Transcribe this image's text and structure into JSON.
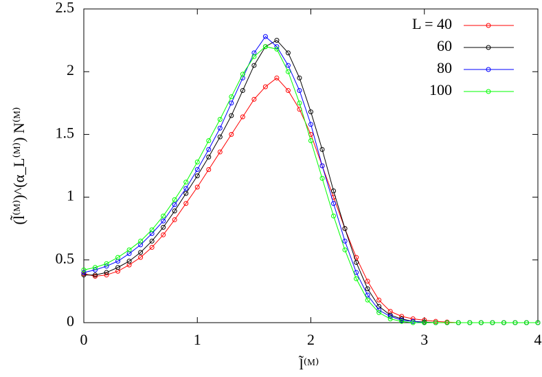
{
  "chart_data": {
    "type": "line",
    "xlabel": "l̃⁽ᴹ⁾",
    "ylabel": "(l̃⁽ᴹ⁾)^(α_L⁽ᴹ⁾) N⁽ᴹ⁾",
    "x": [
      0,
      0.1,
      0.2,
      0.3,
      0.4,
      0.5,
      0.6,
      0.7,
      0.8,
      0.9,
      1,
      1.1,
      1.2,
      1.3,
      1.4,
      1.5,
      1.6,
      1.7,
      1.8,
      1.9,
      2,
      2.1,
      2.2,
      2.3,
      2.4,
      2.5,
      2.6,
      2.7,
      2.8,
      2.9,
      3,
      3.1,
      3.2,
      3.3,
      3.4,
      3.5,
      3.6,
      3.7,
      3.8,
      3.9,
      4
    ],
    "series": [
      {
        "name": "L = 40",
        "color": "#ff0000",
        "values": [
          0.39,
          0.37,
          0.38,
          0.41,
          0.46,
          0.52,
          0.6,
          0.7,
          0.82,
          0.95,
          1.08,
          1.22,
          1.36,
          1.5,
          1.64,
          1.78,
          1.88,
          1.95,
          1.85,
          1.7,
          1.5,
          1.25,
          1.0,
          0.75,
          0.52,
          0.33,
          0.18,
          0.09,
          0.05,
          0.03,
          0.02,
          0.01,
          0.005,
          0,
          0,
          0,
          0,
          0,
          0,
          0,
          0
        ]
      },
      {
        "name": "60",
        "color": "#000000",
        "values": [
          0.38,
          0.38,
          0.4,
          0.44,
          0.49,
          0.56,
          0.65,
          0.76,
          0.89,
          1.03,
          1.17,
          1.32,
          1.48,
          1.65,
          1.85,
          2.05,
          2.2,
          2.25,
          2.15,
          1.95,
          1.68,
          1.38,
          1.05,
          0.75,
          0.48,
          0.27,
          0.13,
          0.06,
          0.03,
          0.01,
          0.005,
          0,
          0,
          0,
          0,
          0,
          0,
          0,
          0,
          0,
          0
        ]
      },
      {
        "name": "80",
        "color": "#0000ff",
        "values": [
          0.4,
          0.42,
          0.45,
          0.49,
          0.55,
          0.62,
          0.71,
          0.81,
          0.94,
          1.07,
          1.22,
          1.38,
          1.55,
          1.75,
          1.95,
          2.15,
          2.28,
          2.2,
          2.05,
          1.85,
          1.58,
          1.25,
          0.95,
          0.65,
          0.4,
          0.22,
          0.1,
          0.05,
          0.02,
          0.01,
          0,
          0,
          0,
          0,
          0,
          0,
          0,
          0,
          0,
          0,
          0
        ]
      },
      {
        "name": "100",
        "color": "#00ff00",
        "values": [
          0.42,
          0.44,
          0.47,
          0.52,
          0.58,
          0.65,
          0.74,
          0.85,
          0.98,
          1.12,
          1.28,
          1.45,
          1.62,
          1.8,
          1.98,
          2.12,
          2.2,
          2.18,
          2.0,
          1.75,
          1.45,
          1.15,
          0.85,
          0.58,
          0.35,
          0.18,
          0.08,
          0.03,
          0.01,
          0,
          0,
          0,
          0,
          0,
          0,
          0,
          0,
          0,
          0,
          0,
          0
        ]
      }
    ],
    "xlim": [
      0,
      4
    ],
    "ylim": [
      0,
      2.5
    ],
    "xticks": [
      0,
      1,
      2,
      3,
      4
    ],
    "yticks": [
      0,
      0.5,
      1,
      1.5,
      2,
      2.5
    ],
    "grid": false,
    "legend": "upper right"
  }
}
